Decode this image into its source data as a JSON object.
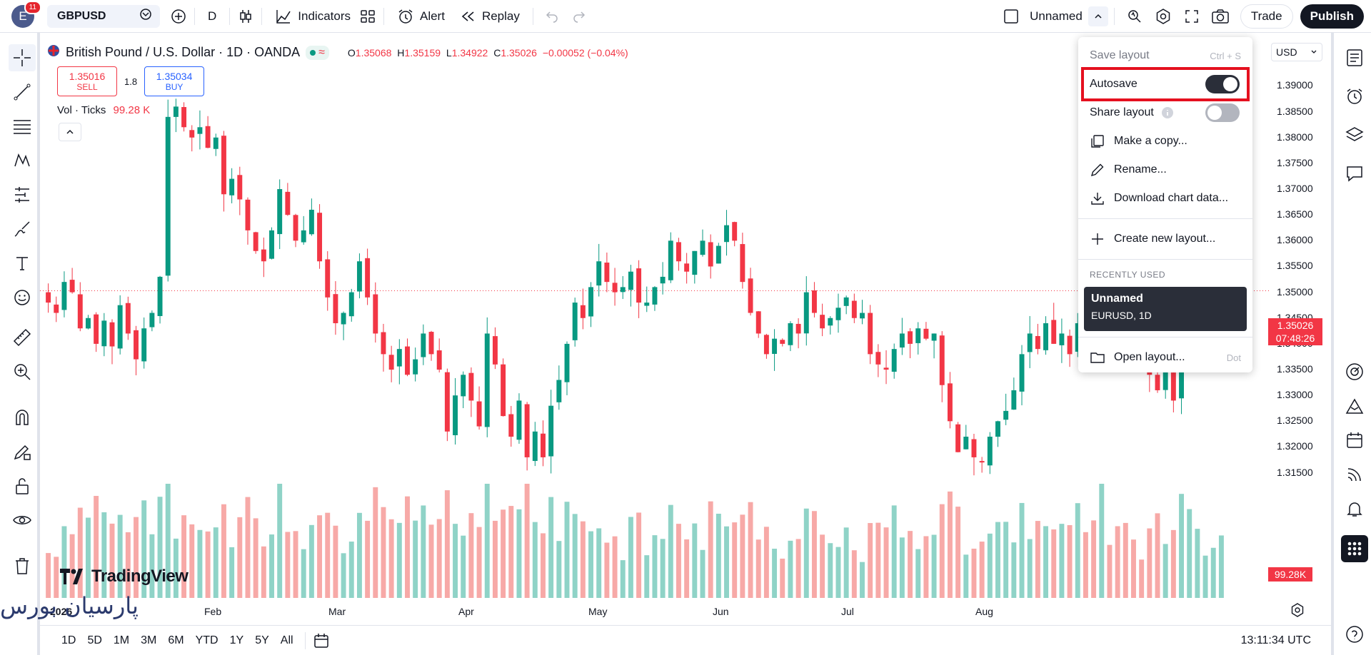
{
  "topbar": {
    "avatar_letter": "E",
    "avatar_badge": "11",
    "symbol": "GBPUSD",
    "interval": "D",
    "indicators_label": "Indicators",
    "alert_label": "Alert",
    "replay_label": "Replay",
    "layout_name": "Unnamed",
    "trade_label": "Trade",
    "publish_label": "Publish"
  },
  "legend": {
    "title": "British Pound / U.S. Dollar · 1D · OANDA",
    "open": "1.35068",
    "high": "1.35159",
    "low": "1.34922",
    "close": "1.35026",
    "change": "−0.00052 (−0.04%)",
    "sell_price": "1.35016",
    "sell_label": "SELL",
    "spread": "1.8",
    "buy_price": "1.35034",
    "buy_label": "BUY",
    "vol_label": "Vol · Ticks",
    "vol_value": "99.28 K"
  },
  "menu": {
    "save_layout": "Save layout",
    "save_shortcut": "Ctrl + S",
    "autosave": "Autosave",
    "autosave_on": true,
    "share_layout": "Share layout",
    "share_on": false,
    "make_copy": "Make a copy...",
    "rename": "Rename...",
    "download": "Download chart data...",
    "create_new": "Create new layout...",
    "recently_used": "RECENTLY USED",
    "recent_name": "Unnamed",
    "recent_sub": "EURUSD, 1D",
    "open_layout": "Open layout...",
    "open_shortcut": "Dot"
  },
  "price_scale": {
    "currency": "USD",
    "current_price": "1.35026",
    "countdown": "07:48:26",
    "volume_tag": "99.28K"
  },
  "bottombar": {
    "ranges": [
      "1D",
      "5D",
      "1M",
      "3M",
      "6M",
      "YTD",
      "1Y",
      "5Y",
      "All"
    ],
    "time_utc": "13:11:34 UTC"
  },
  "watermark_text": "پارسیان بورس",
  "logo_text": "TradingView",
  "colors": {
    "up": "#089981",
    "down": "#f23645",
    "vol_up": "#8fd3c7",
    "vol_down": "#f7a9a7"
  },
  "chart_data": {
    "type": "candlestick",
    "y_ticks": [
      "1.39000",
      "1.38500",
      "1.38000",
      "1.37500",
      "1.37000",
      "1.36500",
      "1.36000",
      "1.35500",
      "1.35000",
      "1.34500",
      "1.34000",
      "1.33500",
      "1.33000",
      "1.32500",
      "1.32000",
      "1.31500"
    ],
    "x_labels": [
      "2026",
      "Feb",
      "Mar",
      "Apr",
      "May",
      "Jun",
      "Jul",
      "Aug"
    ],
    "ylim": [
      1.309,
      1.392
    ],
    "closes": [
      1.348,
      1.346,
      1.352,
      1.35,
      1.343,
      1.345,
      1.34,
      1.3445,
      1.3395,
      1.3475,
      1.342,
      1.337,
      1.343,
      1.346,
      1.353,
      1.384,
      1.386,
      1.382,
      1.38,
      1.382,
      1.378,
      1.38,
      1.369,
      1.372,
      1.368,
      1.362,
      1.358,
      1.356,
      1.362,
      1.37,
      1.365,
      1.36,
      1.362,
      1.366,
      1.356,
      1.349,
      1.344,
      1.346,
      1.35,
      1.356,
      1.349,
      1.342,
      1.338,
      1.335,
      1.339,
      1.334,
      1.337,
      1.342,
      1.338,
      1.335,
      1.323,
      1.33,
      1.334,
      1.329,
      1.324,
      1.342,
      1.336,
      1.326,
      1.322,
      1.329,
      1.318,
      1.323,
      1.318,
      1.328,
      1.333,
      1.34,
      1.348,
      1.345,
      1.351,
      1.356,
      1.352,
      1.35,
      1.351,
      1.354,
      1.348,
      1.348,
      1.351,
      1.353,
      1.36,
      1.356,
      1.354,
      1.358,
      1.36,
      1.355,
      1.359,
      1.363,
      1.36,
      1.352,
      1.346,
      1.342,
      1.338,
      1.341,
      1.34,
      1.344,
      1.342,
      1.35,
      1.346,
      1.343,
      1.345,
      1.347,
      1.349,
      1.345,
      1.346,
      1.338,
      1.336,
      1.335,
      1.339,
      1.342,
      1.34,
      1.343,
      1.341,
      1.342,
      1.332,
      1.325,
      1.319,
      1.322,
      1.318,
      1.317,
      1.322,
      1.325,
      1.327,
      1.331,
      1.338,
      1.342,
      1.339,
      1.344,
      1.34,
      1.342,
      1.338,
      1.344,
      1.343,
      1.342,
      1.356,
      1.353,
      1.347,
      1.344,
      1.339,
      1.338,
      1.334,
      1.331,
      1.335,
      1.329,
      1.34,
      1.344,
      1.346,
      1.348,
      1.35,
      1.3503
    ]
  }
}
